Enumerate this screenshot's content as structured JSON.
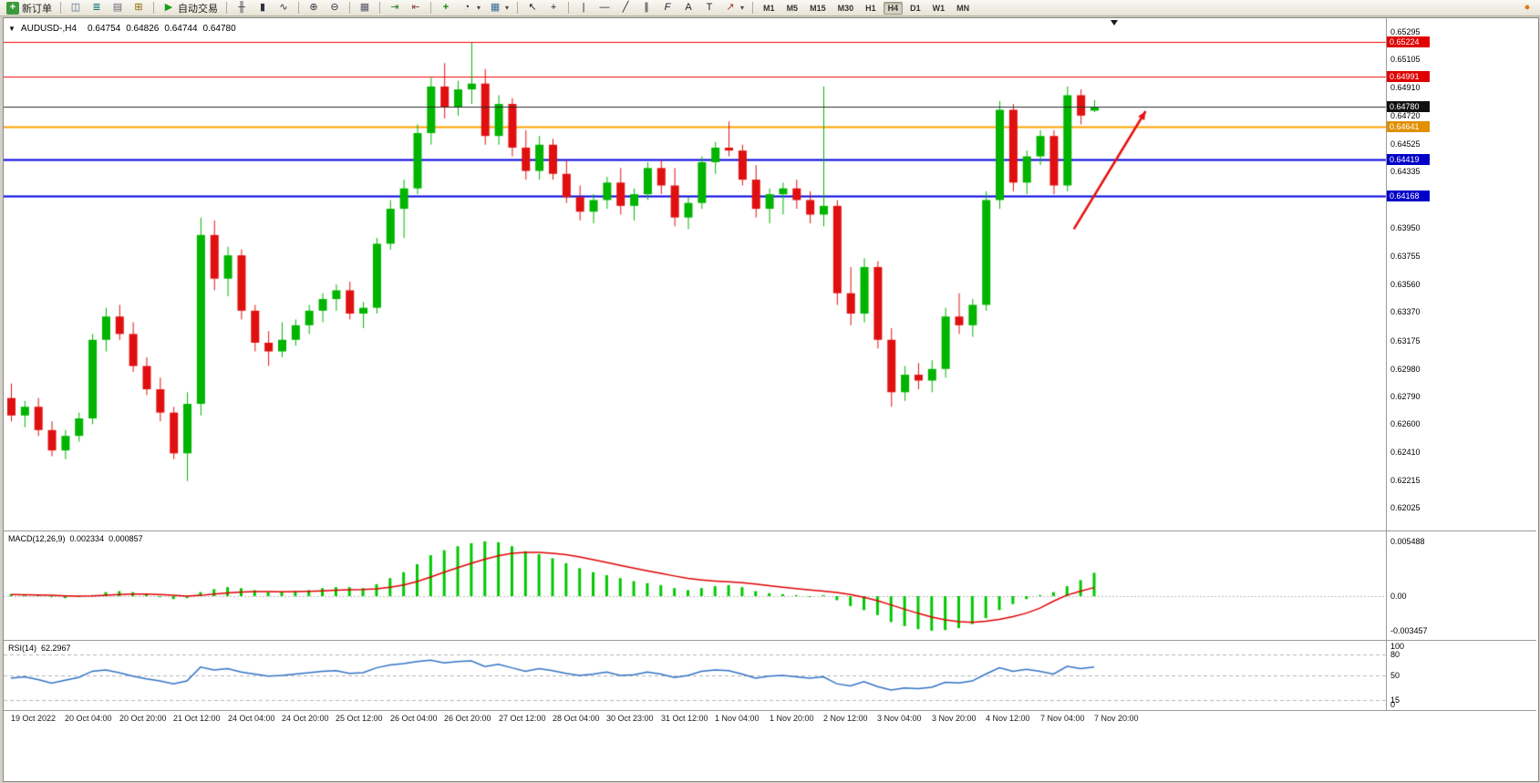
{
  "ui": {
    "toolbar": {
      "items": [
        {
          "name": "new-order-button",
          "icon": "new-order-icon",
          "label": "新订单"
        },
        {
          "sep": true
        },
        {
          "name": "charts-button",
          "icon": "chart-window-icon"
        },
        {
          "name": "market-watch-button",
          "icon": "market-watch-icon"
        },
        {
          "name": "data-window-button",
          "icon": "data-window-icon"
        },
        {
          "name": "navigator-button",
          "icon": "navigator-icon"
        },
        {
          "sep": true
        },
        {
          "name": "autotrading-button",
          "icon": "autotrading-icon",
          "label": "自动交易"
        },
        {
          "sep": true
        },
        {
          "name": "bar-chart-button",
          "icon": "bar-chart-icon"
        },
        {
          "name": "candlestick-button",
          "icon": "candlestick-icon"
        },
        {
          "name": "line-chart-button",
          "icon": "line-chart-icon"
        },
        {
          "sep": true
        },
        {
          "name": "zoom-in-button",
          "icon": "zoom-in-icon"
        },
        {
          "name": "zoom-out-button",
          "icon": "zoom-out-icon"
        },
        {
          "sep": true
        },
        {
          "name": "tile-windows-button",
          "icon": "tile-windows-icon"
        },
        {
          "sep": true
        },
        {
          "name": "auto-scroll-button",
          "icon": "auto-scroll-icon"
        },
        {
          "name": "chart-shift-button",
          "icon": "chart-shift-icon"
        },
        {
          "sep": true
        },
        {
          "name": "indicators-button",
          "icon": "indicators-icon"
        },
        {
          "name": "periods-button",
          "icon": "periods-icon"
        },
        {
          "name": "templates-button",
          "icon": "templates-icon"
        },
        {
          "sep": true
        },
        {
          "name": "cursor-button",
          "icon": "cursor-icon"
        },
        {
          "name": "crosshair-button",
          "icon": "crosshair-icon"
        },
        {
          "sep": true
        },
        {
          "name": "vertical-line-button",
          "icon": "vertical-line-icon"
        },
        {
          "name": "horizontal-line-button",
          "icon": "horizontal-line-icon"
        },
        {
          "name": "trendline-button",
          "icon": "trendline-icon"
        },
        {
          "name": "channel-button",
          "icon": "channel-icon"
        },
        {
          "name": "fibonacci-button",
          "icon": "fibonacci-icon"
        },
        {
          "name": "text-button",
          "icon": "text-icon"
        },
        {
          "name": "text-label-button",
          "icon": "text-label-icon"
        },
        {
          "name": "arrows-button",
          "icon": "arrows-icon"
        },
        {
          "sep": true
        }
      ],
      "timeframes": [
        "M1",
        "M5",
        "M15",
        "M30",
        "H1",
        "H4",
        "D1",
        "W1",
        "MN"
      ],
      "active_timeframe": "H4"
    },
    "info_line": {
      "symbol": "AUDUSD-,H4",
      "open": "0.64754",
      "high": "0.64826",
      "low": "0.64744",
      "close": "0.64780"
    },
    "price_axis": {
      "ticks": [
        "0.65295",
        "0.65105",
        "0.64910",
        "0.64720",
        "0.64525",
        "0.64335",
        "0.63950",
        "0.63755",
        "0.63560",
        "0.63370",
        "0.63175",
        "0.62980",
        "0.62790",
        "0.62600",
        "0.62410",
        "0.62215",
        "0.62025"
      ]
    },
    "time_axis": [
      {
        "label": "19 Oct 2022",
        "bar": 0
      },
      {
        "label": "20 Oct 04:00",
        "bar": 4
      },
      {
        "label": "20 Oct 20:00",
        "bar": 8
      },
      {
        "label": "21 Oct 12:00",
        "bar": 12
      },
      {
        "label": "24 Oct 04:00",
        "bar": 16
      },
      {
        "label": "24 Oct 20:00",
        "bar": 20
      },
      {
        "label": "25 Oct 12:00",
        "bar": 24
      },
      {
        "label": "26 Oct 04:00",
        "bar": 28
      },
      {
        "label": "26 Oct 20:00",
        "bar": 32
      },
      {
        "label": "27 Oct 12:00",
        "bar": 36
      },
      {
        "label": "28 Oct 04:00",
        "bar": 40
      },
      {
        "label": "30 Oct 23:00",
        "bar": 44
      },
      {
        "label": "31 Oct 12:00",
        "bar": 48
      },
      {
        "label": "1 Nov 04:00",
        "bar": 52
      },
      {
        "label": "1 Nov 20:00",
        "bar": 56
      },
      {
        "label": "2 Nov 12:00",
        "bar": 60
      },
      {
        "label": "3 Nov 04:00",
        "bar": 64
      },
      {
        "label": "3 Nov 20:00",
        "bar": 68
      },
      {
        "label": "4 Nov 12:00",
        "bar": 72
      },
      {
        "label": "7 Nov 04:00",
        "bar": 76
      },
      {
        "label": "7 Nov 20:00",
        "bar": 80
      }
    ],
    "macd_axis": [
      {
        "label": "0.005488",
        "value": 0.005488
      },
      {
        "label": "0.00",
        "value": 0
      },
      {
        "label": "-0.003457",
        "value": -0.003457
      }
    ],
    "rsi_axis": [
      {
        "label": "100",
        "value": 100
      },
      {
        "label": "80",
        "value": 80
      },
      {
        "label": "50",
        "value": 50
      },
      {
        "label": "15",
        "value": 15
      },
      {
        "label": "0",
        "value": 0
      }
    ]
  },
  "chart_data": {
    "type": "candlestick",
    "symbol": "AUDUSD-",
    "timeframe": "H4",
    "colors": {
      "up": "#00b400",
      "down": "#e01010",
      "background": "#ffffff"
    },
    "current_price": {
      "value": "0.64780",
      "price": 0.6478,
      "line_color": "#2b2b2b",
      "badge_color": "#111111"
    },
    "levels": [
      {
        "price": 0.65224,
        "label": "0.65224",
        "color": "#f00000",
        "badge": "#e00000"
      },
      {
        "price": 0.64991,
        "label": "0.64991",
        "color": "#f00000",
        "badge": "#e00000"
      },
      {
        "price": 0.64641,
        "label": "0.64641",
        "color": "#ffa000",
        "badge": "#e09000"
      },
      {
        "price": 0.64419,
        "label": "0.64419",
        "color": "#0000e0",
        "badge": "#0000c8"
      },
      {
        "price": 0.64168,
        "label": "0.64168",
        "color": "#0000e0",
        "badge": "#0000c8"
      }
    ],
    "annotations": [
      {
        "type": "arrow",
        "color": "#e81212",
        "from_bar": 78.5,
        "from_price": 0.6394,
        "to_bar": 83.8,
        "to_price": 0.6475
      }
    ],
    "candles": [
      [
        0.6278,
        0.6288,
        0.6262,
        0.6266
      ],
      [
        0.6266,
        0.6276,
        0.6258,
        0.6272
      ],
      [
        0.6272,
        0.6278,
        0.6252,
        0.6256
      ],
      [
        0.6256,
        0.6262,
        0.6238,
        0.6242
      ],
      [
        0.6242,
        0.6256,
        0.6236,
        0.6252
      ],
      [
        0.6252,
        0.6268,
        0.6248,
        0.6264
      ],
      [
        0.6264,
        0.6322,
        0.626,
        0.6318
      ],
      [
        0.6318,
        0.634,
        0.631,
        0.6334
      ],
      [
        0.6334,
        0.6342,
        0.6318,
        0.6322
      ],
      [
        0.6322,
        0.633,
        0.6296,
        0.63
      ],
      [
        0.63,
        0.6306,
        0.628,
        0.6284
      ],
      [
        0.6284,
        0.6292,
        0.6262,
        0.6268
      ],
      [
        0.6268,
        0.6272,
        0.6236,
        0.624
      ],
      [
        0.624,
        0.6282,
        0.6221,
        0.6274
      ],
      [
        0.6274,
        0.6402,
        0.6266,
        0.639
      ],
      [
        0.639,
        0.64,
        0.6352,
        0.636
      ],
      [
        0.636,
        0.6382,
        0.6348,
        0.6376
      ],
      [
        0.6376,
        0.638,
        0.6332,
        0.6338
      ],
      [
        0.6338,
        0.6342,
        0.631,
        0.6316
      ],
      [
        0.6316,
        0.6324,
        0.63,
        0.631
      ],
      [
        0.631,
        0.633,
        0.6306,
        0.6318
      ],
      [
        0.6318,
        0.6332,
        0.6314,
        0.6328
      ],
      [
        0.6328,
        0.6342,
        0.6322,
        0.6338
      ],
      [
        0.6338,
        0.635,
        0.633,
        0.6346
      ],
      [
        0.6346,
        0.6356,
        0.6338,
        0.6352
      ],
      [
        0.6352,
        0.6358,
        0.6332,
        0.6336
      ],
      [
        0.6336,
        0.6344,
        0.6326,
        0.634
      ],
      [
        0.634,
        0.6388,
        0.6336,
        0.6384
      ],
      [
        0.6384,
        0.6414,
        0.638,
        0.6408
      ],
      [
        0.6408,
        0.6428,
        0.6388,
        0.6422
      ],
      [
        0.6422,
        0.6466,
        0.6418,
        0.646
      ],
      [
        0.646,
        0.6498,
        0.6452,
        0.6492
      ],
      [
        0.6492,
        0.6508,
        0.647,
        0.6478
      ],
      [
        0.6478,
        0.6496,
        0.6472,
        0.649
      ],
      [
        0.649,
        0.6522,
        0.648,
        0.6494
      ],
      [
        0.6494,
        0.6504,
        0.6452,
        0.6458
      ],
      [
        0.6458,
        0.6486,
        0.6452,
        0.648
      ],
      [
        0.648,
        0.6484,
        0.6444,
        0.645
      ],
      [
        0.645,
        0.6462,
        0.6428,
        0.6434
      ],
      [
        0.6434,
        0.6458,
        0.6428,
        0.6452
      ],
      [
        0.6452,
        0.6456,
        0.6428,
        0.6432
      ],
      [
        0.6432,
        0.6442,
        0.6412,
        0.6416
      ],
      [
        0.6416,
        0.6424,
        0.64,
        0.6406
      ],
      [
        0.6406,
        0.6418,
        0.6398,
        0.6414
      ],
      [
        0.6414,
        0.643,
        0.6408,
        0.6426
      ],
      [
        0.6426,
        0.6436,
        0.6404,
        0.641
      ],
      [
        0.641,
        0.6422,
        0.64,
        0.6418
      ],
      [
        0.6418,
        0.644,
        0.6414,
        0.6436
      ],
      [
        0.6436,
        0.6442,
        0.6418,
        0.6424
      ],
      [
        0.6424,
        0.6436,
        0.6396,
        0.6402
      ],
      [
        0.6402,
        0.6416,
        0.6394,
        0.6412
      ],
      [
        0.6412,
        0.6444,
        0.6408,
        0.644
      ],
      [
        0.644,
        0.6454,
        0.6432,
        0.645
      ],
      [
        0.645,
        0.6468,
        0.6444,
        0.6448
      ],
      [
        0.6448,
        0.6452,
        0.6424,
        0.6428
      ],
      [
        0.6428,
        0.6438,
        0.6402,
        0.6408
      ],
      [
        0.6408,
        0.6422,
        0.6398,
        0.6418
      ],
      [
        0.6418,
        0.6426,
        0.6404,
        0.6422
      ],
      [
        0.6422,
        0.6428,
        0.6408,
        0.6414
      ],
      [
        0.6414,
        0.642,
        0.6398,
        0.6404
      ],
      [
        0.6404,
        0.6492,
        0.6396,
        0.641
      ],
      [
        0.641,
        0.6414,
        0.6342,
        0.635
      ],
      [
        0.635,
        0.6368,
        0.6328,
        0.6336
      ],
      [
        0.6336,
        0.6374,
        0.633,
        0.6368
      ],
      [
        0.6368,
        0.6372,
        0.6312,
        0.6318
      ],
      [
        0.6318,
        0.6326,
        0.6272,
        0.6282
      ],
      [
        0.6282,
        0.63,
        0.6276,
        0.6294
      ],
      [
        0.6294,
        0.6302,
        0.6284,
        0.629
      ],
      [
        0.629,
        0.6304,
        0.6282,
        0.6298
      ],
      [
        0.6298,
        0.634,
        0.6292,
        0.6334
      ],
      [
        0.6334,
        0.635,
        0.6322,
        0.6328
      ],
      [
        0.6328,
        0.6346,
        0.632,
        0.6342
      ],
      [
        0.6342,
        0.642,
        0.6338,
        0.6414
      ],
      [
        0.6414,
        0.6482,
        0.6408,
        0.6476
      ],
      [
        0.6476,
        0.648,
        0.642,
        0.6426
      ],
      [
        0.6426,
        0.6448,
        0.6418,
        0.6444
      ],
      [
        0.6444,
        0.6462,
        0.6438,
        0.6458
      ],
      [
        0.6458,
        0.6462,
        0.6418,
        0.6424
      ],
      [
        0.6424,
        0.6492,
        0.642,
        0.6486
      ],
      [
        0.6486,
        0.649,
        0.6466,
        0.6472
      ],
      [
        0.64754,
        0.64826,
        0.64744,
        0.6478
      ]
    ],
    "indicators": {
      "macd": {
        "name": "MACD(12,26,9)",
        "current_main": "0.002334",
        "current_signal": "0.000857",
        "histogram_color": "#00c800",
        "signal_color": "#e00000",
        "histogram": [
          0.0002,
          0.00015,
          0.0001,
          -0.0001,
          -0.0002,
          -0.0001,
          0.0001,
          0.0004,
          0.0005,
          0.0004,
          0.0002,
          -0.0001,
          -0.0003,
          -0.0002,
          0.0004,
          0.0007,
          0.0009,
          0.0008,
          0.0006,
          0.0004,
          0.0004,
          0.0005,
          0.0006,
          0.0008,
          0.0009,
          0.0009,
          0.0008,
          0.0012,
          0.0018,
          0.0024,
          0.0032,
          0.0041,
          0.0046,
          0.005,
          0.0053,
          0.005488,
          0.0054,
          0.005,
          0.0045,
          0.0042,
          0.0038,
          0.0033,
          0.0028,
          0.0024,
          0.0021,
          0.0018,
          0.0015,
          0.0013,
          0.0011,
          0.0008,
          0.0006,
          0.0008,
          0.001,
          0.0011,
          0.0009,
          0.0005,
          0.0003,
          0.0002,
          0.0001,
          0,
          0.0001,
          -0.0004,
          -0.001,
          -0.0014,
          -0.0019,
          -0.0026,
          -0.003,
          -0.0033,
          -0.003457,
          -0.0034,
          -0.0032,
          -0.0028,
          -0.0022,
          -0.0014,
          -0.0008,
          -0.0003,
          0.0001,
          0.0004,
          0.001,
          0.0016,
          0.002334
        ],
        "signal": [
          0.00015,
          0.00014,
          0.00012,
          8e-05,
          3e-05,
          0,
          2e-05,
          9e-05,
          0.00017,
          0.00021,
          0.00021,
          0.00016,
          8e-05,
          1e-05,
          8e-05,
          0.0002,
          0.00033,
          0.00042,
          0.00046,
          0.00045,
          0.00044,
          0.00045,
          0.00048,
          0.00053,
          0.00059,
          0.00064,
          0.00067,
          0.00074,
          0.00089,
          0.00112,
          0.00146,
          0.00192,
          0.00239,
          0.00285,
          0.00328,
          0.00369,
          0.00404,
          0.00428,
          0.00438,
          0.00437,
          0.00429,
          0.00415,
          0.00393,
          0.00366,
          0.00338,
          0.00309,
          0.00281,
          0.00254,
          0.00228,
          0.00202,
          0.00178,
          0.00161,
          0.00151,
          0.00144,
          0.00135,
          0.00121,
          0.00105,
          0.0009,
          0.00076,
          0.00062,
          0.00051,
          0.00037,
          0.00016,
          -0.00011,
          -0.00046,
          -0.00088,
          -0.00131,
          -0.00172,
          -0.00209,
          -0.00238,
          -0.00256,
          -0.00262,
          -0.00252,
          -0.00232,
          -0.00205,
          -0.0017,
          -0.0012,
          -0.0005,
          0.0001,
          0.0005,
          0.000857
        ]
      },
      "rsi": {
        "name": "RSI(14)",
        "current": "62.2967",
        "line_color": "#3273c4",
        "levels": [
          80,
          50,
          15
        ],
        "values": [
          46,
          48,
          44,
          39,
          43,
          47,
          56,
          58,
          54,
          49,
          45,
          42,
          38,
          42,
          62,
          58,
          60,
          55,
          52,
          49,
          50,
          52,
          54,
          56,
          57,
          53,
          54,
          61,
          65,
          67,
          70,
          72,
          68,
          70,
          71,
          63,
          66,
          61,
          56,
          60,
          57,
          53,
          50,
          52,
          55,
          50,
          51,
          55,
          52,
          47,
          50,
          56,
          58,
          57,
          52,
          46,
          49,
          50,
          48,
          46,
          48,
          38,
          35,
          41,
          34,
          29,
          32,
          31,
          33,
          40,
          39,
          42,
          52,
          61,
          56,
          59,
          56,
          52,
          63,
          60,
          62.2967
        ]
      }
    }
  }
}
